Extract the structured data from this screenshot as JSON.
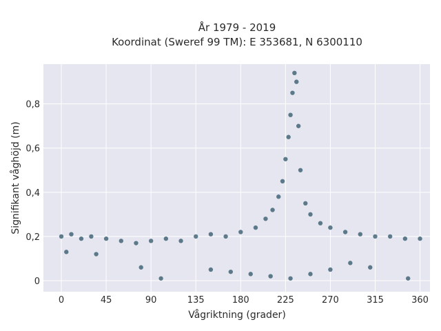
{
  "chart_data": {
    "type": "scatter",
    "title_line1": "År 1979 - 2019",
    "title_line2": "Koordinat (Sweref 99 TM): E 353681, N 6300110",
    "xlabel": "Vågriktning (grader)",
    "ylabel": "Signifikant våghöjd (m)",
    "xlim": [
      -18,
      370
    ],
    "ylim": [
      -0.05,
      0.98
    ],
    "xticks": [
      0,
      45,
      90,
      135,
      180,
      225,
      270,
      315,
      360
    ],
    "xtick_labels": [
      "0",
      "45",
      "90",
      "135",
      "180",
      "225",
      "270",
      "315",
      "360"
    ],
    "yticks": [
      0,
      0.2,
      0.4,
      0.6,
      0.8
    ],
    "ytick_labels": [
      "0",
      "0,2",
      "0,4",
      "0,6",
      "0,8"
    ],
    "grid": true,
    "marker_color": "#2e5468",
    "background_color": "#e5e6ef",
    "series": [
      {
        "points": [
          [
            0,
            0.2
          ],
          [
            10,
            0.21
          ],
          [
            20,
            0.19
          ],
          [
            30,
            0.2
          ],
          [
            45,
            0.19
          ],
          [
            60,
            0.18
          ],
          [
            75,
            0.17
          ],
          [
            90,
            0.18
          ],
          [
            105,
            0.19
          ],
          [
            120,
            0.18
          ],
          [
            135,
            0.2
          ],
          [
            150,
            0.21
          ],
          [
            165,
            0.2
          ],
          [
            180,
            0.22
          ],
          [
            195,
            0.24
          ],
          [
            205,
            0.28
          ],
          [
            212,
            0.32
          ],
          [
            218,
            0.38
          ],
          [
            222,
            0.45
          ],
          [
            225,
            0.55
          ],
          [
            228,
            0.65
          ],
          [
            230,
            0.75
          ],
          [
            232,
            0.85
          ],
          [
            234,
            0.94
          ],
          [
            236,
            0.9
          ],
          [
            238,
            0.7
          ],
          [
            240,
            0.5
          ],
          [
            245,
            0.35
          ],
          [
            250,
            0.3
          ],
          [
            260,
            0.26
          ],
          [
            270,
            0.24
          ],
          [
            285,
            0.22
          ],
          [
            300,
            0.21
          ],
          [
            315,
            0.2
          ],
          [
            330,
            0.2
          ],
          [
            345,
            0.19
          ],
          [
            360,
            0.19
          ],
          [
            150,
            0.05
          ],
          [
            170,
            0.04
          ],
          [
            190,
            0.03
          ],
          [
            210,
            0.02
          ],
          [
            230,
            0.01
          ],
          [
            250,
            0.03
          ],
          [
            270,
            0.05
          ],
          [
            290,
            0.08
          ],
          [
            310,
            0.06
          ],
          [
            5,
            0.13
          ],
          [
            35,
            0.12
          ],
          [
            80,
            0.06
          ],
          [
            100,
            0.01
          ],
          [
            348,
            0.01
          ]
        ]
      }
    ]
  }
}
